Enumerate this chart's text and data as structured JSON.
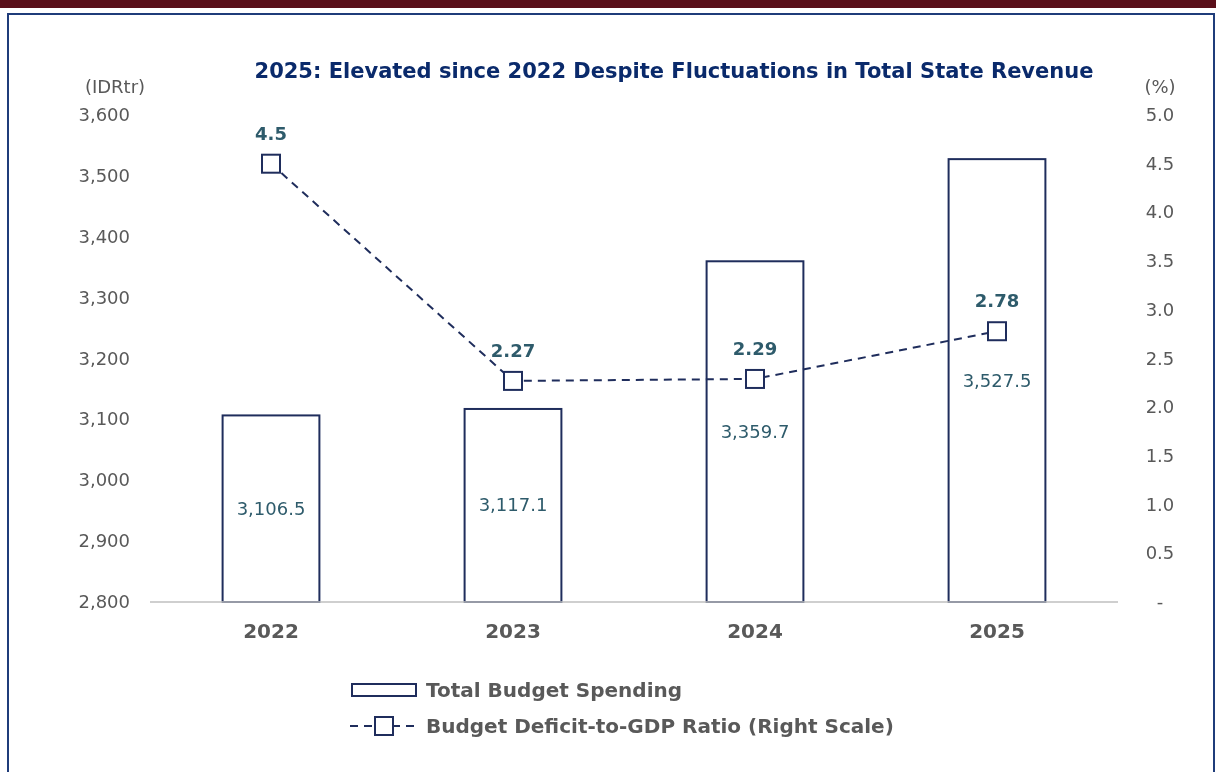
{
  "chart_data": {
    "type": "bar",
    "title": "2025: Elevated since 2022 Despite Fluctuations in Total State Revenue",
    "ylabel": "(IDRtr)",
    "y2label": "(%)",
    "categories": [
      "2022",
      "2023",
      "2024",
      "2025"
    ],
    "series": [
      {
        "name": "Total Budget Spending",
        "color": "#1f2d5c",
        "values": [
          3106.5,
          3117.1,
          3359.7,
          3527.5
        ],
        "value_labels": [
          "3,106.5",
          "3,117.1",
          "3,359.7",
          "3,527.5"
        ]
      },
      {
        "name": "Budget Deficit-to-GDP Ratio (Right Scale)",
        "type": "line",
        "axis": "y2",
        "color": "#1f2d5c",
        "marker": "square",
        "line_style": "dashed",
        "values": [
          4.5,
          2.27,
          2.29,
          2.78
        ],
        "value_labels": [
          "4.5",
          "2.27",
          "2.29",
          "2.78"
        ]
      }
    ],
    "ylim": [
      2800,
      3600
    ],
    "yticks": [
      {
        "value": 2800,
        "label": "2,800"
      },
      {
        "value": 2900,
        "label": "2,900"
      },
      {
        "value": 3000,
        "label": "3,000"
      },
      {
        "value": 3100,
        "label": "3,100"
      },
      {
        "value": 3200,
        "label": "3,200"
      },
      {
        "value": 3300,
        "label": "3,300"
      },
      {
        "value": 3400,
        "label": "3,400"
      },
      {
        "value": 3500,
        "label": "3,500"
      },
      {
        "value": 3600,
        "label": "3,600"
      }
    ],
    "y2lim": [
      0,
      5
    ],
    "y2ticks": [
      {
        "value": 0,
        "label": "-"
      },
      {
        "value": 0.5,
        "label": "0.5"
      },
      {
        "value": 1,
        "label": "1.0"
      },
      {
        "value": 1.5,
        "label": "1.5"
      },
      {
        "value": 2,
        "label": "2.0"
      },
      {
        "value": 2.5,
        "label": "2.5"
      },
      {
        "value": 3,
        "label": "3.0"
      },
      {
        "value": 3.5,
        "label": "3.5"
      },
      {
        "value": 4,
        "label": "4.0"
      },
      {
        "value": 4.5,
        "label": "4.5"
      },
      {
        "value": 5,
        "label": "5.0"
      }
    ],
    "grid": false,
    "legend": "bottom"
  }
}
